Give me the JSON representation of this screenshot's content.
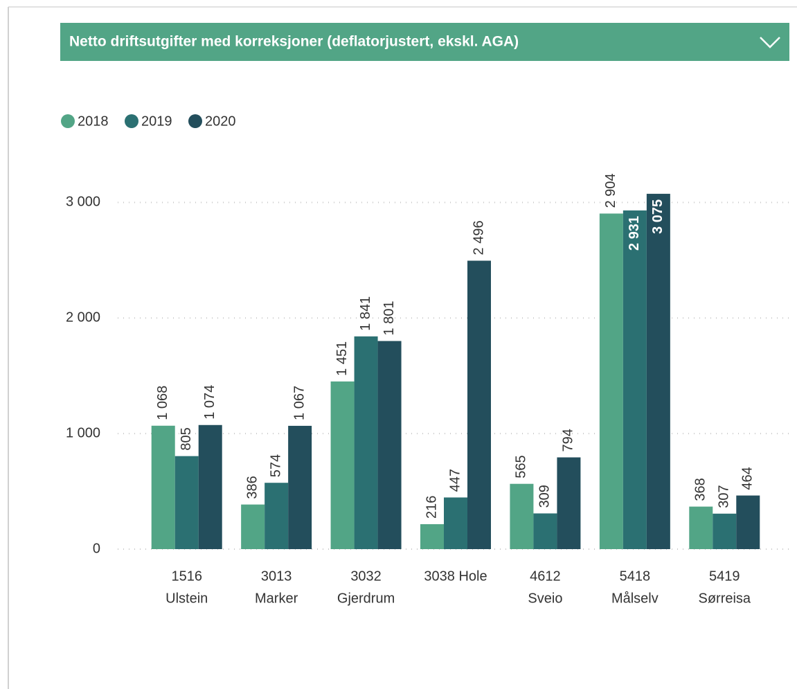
{
  "chart_data": {
    "type": "bar",
    "title": "Netto driftsutgifter med korreksjoner (deflatorjustert, ekskl. AGA)",
    "categories": [
      [
        "1516",
        "Ulstein"
      ],
      [
        "3013",
        "Marker"
      ],
      [
        "3032",
        "Gjerdrum"
      ],
      [
        "3038 Hole"
      ],
      [
        "4612",
        "Sveio"
      ],
      [
        "5418",
        "Målselv"
      ],
      [
        "5419",
        "Sørreisa"
      ]
    ],
    "series": [
      {
        "name": "2018",
        "color": "#52a586",
        "values": [
          1068,
          386,
          1451,
          216,
          565,
          2904,
          368
        ],
        "value_labels": [
          "1 068",
          "386",
          "1 451",
          "216",
          "565",
          "2 904",
          "368"
        ]
      },
      {
        "name": "2019",
        "color": "#2b7072",
        "values": [
          805,
          574,
          1841,
          447,
          309,
          2931,
          307
        ],
        "value_labels": [
          "805",
          "574",
          "1 841",
          "447",
          "309",
          "2 931",
          "307"
        ]
      },
      {
        "name": "2020",
        "color": "#234e5c",
        "values": [
          1074,
          1067,
          1801,
          2496,
          794,
          3075,
          464
        ],
        "value_labels": [
          "1 074",
          "1 067",
          "1 801",
          "2 496",
          "794",
          "3 075",
          "464"
        ]
      }
    ],
    "ylim": [
      0,
      3200
    ],
    "yticks": [
      0,
      {
        "value": 1000,
        "label": "1 000"
      },
      {
        "value": 2000,
        "label": "2 000"
      },
      {
        "value": 3000,
        "label": "3 000"
      }
    ],
    "grid": true,
    "legend": "top-left"
  }
}
